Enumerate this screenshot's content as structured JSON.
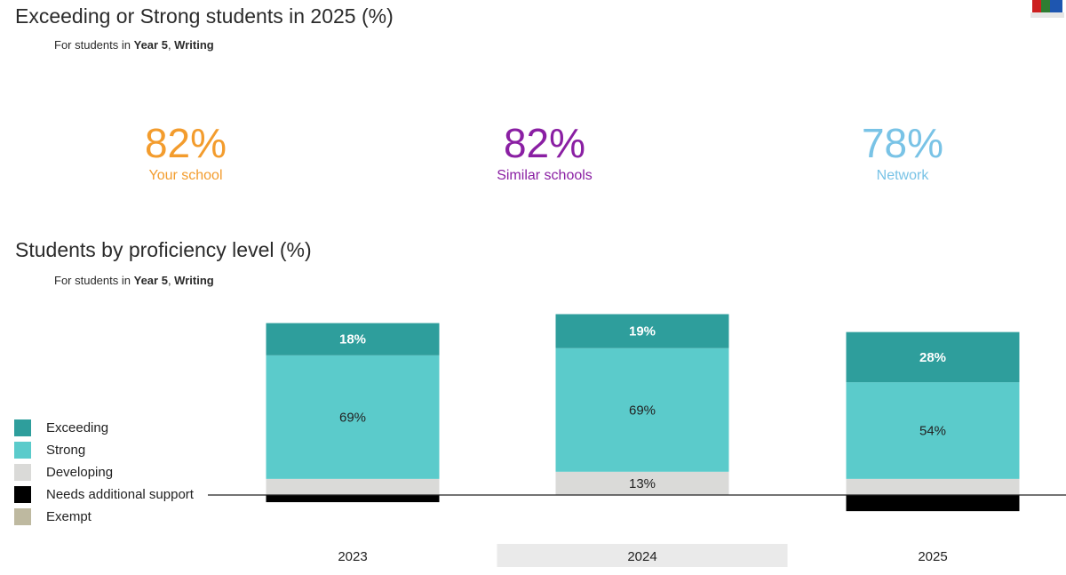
{
  "header": {
    "title": "Exceeding or Strong students in 2025 (%)",
    "subtitle_prefix": "For students in ",
    "year_level": "Year 5",
    "separator": ", ",
    "domain": "Writing"
  },
  "kpis": [
    {
      "value": "82%",
      "label": "Your school",
      "color": "#F39C2D"
    },
    {
      "value": "82%",
      "label": "Similar schools",
      "color": "#8A1FA3"
    },
    {
      "value": "78%",
      "label": "Network",
      "color": "#79C3E6"
    }
  ],
  "section2": {
    "title": "Students by proficiency level (%)",
    "subtitle_prefix": "For students in ",
    "year_level": "Year 5",
    "separator": ", ",
    "domain": "Writing"
  },
  "legend": [
    {
      "label": "Exceeding",
      "color": "#2E9E9C"
    },
    {
      "label": "Strong",
      "color": "#5BCBCB"
    },
    {
      "label": "Developing",
      "color": "#DADAD8"
    },
    {
      "label": "Needs additional support",
      "color": "#000000"
    },
    {
      "label": "Exempt",
      "color": "#BEB9A0"
    }
  ],
  "chart_data": {
    "type": "bar",
    "stacked": true,
    "diverging": true,
    "categories": [
      "2023",
      "2024",
      "2025"
    ],
    "highlighted_category": "2024",
    "series": [
      {
        "name": "Exceeding",
        "values": [
          18,
          19,
          28
        ],
        "labels": [
          "18%",
          "19%",
          "28%"
        ],
        "color": "#2E9E9C"
      },
      {
        "name": "Strong",
        "values": [
          69,
          69,
          54
        ],
        "labels": [
          "69%",
          "69%",
          "54%"
        ],
        "color": "#5BCBCB"
      },
      {
        "name": "Developing",
        "values": [
          9,
          13,
          9
        ],
        "labels": [
          "",
          "13%",
          ""
        ],
        "color": "#DADAD8"
      },
      {
        "name": "Needs additional support",
        "values": [
          4,
          0,
          9
        ],
        "labels": [
          "",
          "",
          ""
        ],
        "color": "#000000"
      },
      {
        "name": "Exempt",
        "values": [
          0,
          0,
          0
        ],
        "labels": [
          "",
          "",
          ""
        ],
        "color": "#BEB9A0"
      }
    ],
    "grid": false,
    "legend_position": "left"
  }
}
